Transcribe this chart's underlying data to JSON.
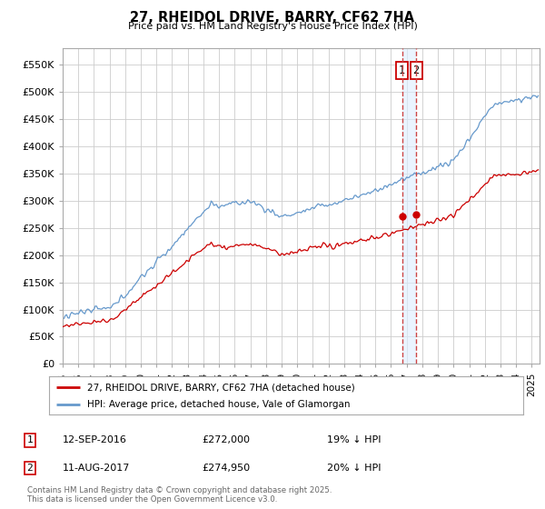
{
  "title": "27, RHEIDOL DRIVE, BARRY, CF62 7HA",
  "subtitle": "Price paid vs. HM Land Registry's House Price Index (HPI)",
  "yticks": [
    0,
    50000,
    100000,
    150000,
    200000,
    250000,
    300000,
    350000,
    400000,
    450000,
    500000,
    550000
  ],
  "ytick_labels": [
    "£0",
    "£50K",
    "£100K",
    "£150K",
    "£200K",
    "£250K",
    "£300K",
    "£350K",
    "£400K",
    "£450K",
    "£500K",
    "£550K"
  ],
  "xlim_start": 1995.0,
  "xlim_end": 2025.5,
  "ylim_min": 0,
  "ylim_max": 580000,
  "purchase1_date": 2016.7,
  "purchase1_price": 272000,
  "purchase2_date": 2017.6,
  "purchase2_price": 274950,
  "red_line_color": "#cc0000",
  "blue_line_color": "#6699cc",
  "dashed_line_color": "#cc4444",
  "shade_color": "#ddeeff",
  "legend1_label": "27, RHEIDOL DRIVE, BARRY, CF62 7HA (detached house)",
  "legend2_label": "HPI: Average price, detached house, Vale of Glamorgan",
  "annotation1_date": "12-SEP-2016",
  "annotation1_price": "£272,000",
  "annotation1_hpi": "19% ↓ HPI",
  "annotation2_date": "11-AUG-2017",
  "annotation2_price": "£274,950",
  "annotation2_hpi": "20% ↓ HPI",
  "footer": "Contains HM Land Registry data © Crown copyright and database right 2025.\nThis data is licensed under the Open Government Licence v3.0.",
  "bg_color": "#ffffff",
  "grid_color": "#cccccc"
}
